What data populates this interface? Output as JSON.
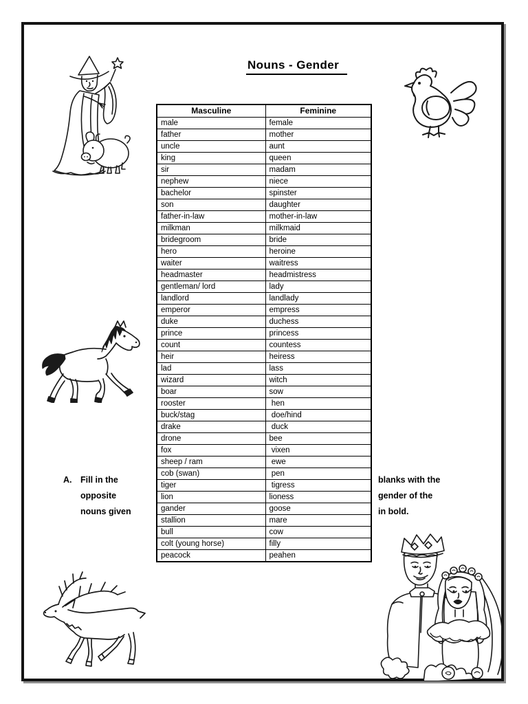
{
  "page": {
    "title": "Nouns - Gender"
  },
  "table": {
    "headers": [
      "Masculine",
      "Feminine"
    ],
    "rows": [
      [
        "male",
        "female"
      ],
      [
        "father",
        "mother"
      ],
      [
        "uncle",
        "aunt"
      ],
      [
        "king",
        "queen"
      ],
      [
        "sir",
        "madam"
      ],
      [
        "nephew",
        "niece"
      ],
      [
        "bachelor",
        "spinster"
      ],
      [
        "son",
        "daughter"
      ],
      [
        "father-in-law",
        "mother-in-law"
      ],
      [
        "milkman",
        "milkmaid"
      ],
      [
        "bridegroom",
        "bride"
      ],
      [
        "hero",
        "heroine"
      ],
      [
        "waiter",
        "waitress"
      ],
      [
        "headmaster",
        "headmistress"
      ],
      [
        "gentleman/ lord",
        "lady"
      ],
      [
        "landlord",
        "landlady"
      ],
      [
        "emperor",
        "empress"
      ],
      [
        "duke",
        "duchess"
      ],
      [
        "prince",
        "princess"
      ],
      [
        "count",
        "countess"
      ],
      [
        "heir",
        "heiress"
      ],
      [
        "lad",
        "lass"
      ],
      [
        "wizard",
        "witch"
      ],
      [
        "boar",
        "sow"
      ],
      [
        "rooster",
        " hen"
      ],
      [
        "buck/stag",
        " doe/hind"
      ],
      [
        "drake",
        " duck"
      ],
      [
        "drone",
        "bee"
      ],
      [
        "fox",
        " vixen"
      ],
      [
        "sheep / ram",
        " ewe"
      ],
      [
        "cob (swan)",
        " pen"
      ],
      [
        "tiger",
        " tigress"
      ],
      [
        "lion",
        "lioness"
      ],
      [
        "gander",
        "goose"
      ],
      [
        "stallion",
        "mare"
      ],
      [
        "bull",
        "cow"
      ],
      [
        "colt (young horse)",
        "filly"
      ],
      [
        "peacock",
        "peahen"
      ]
    ]
  },
  "instructions": {
    "label": "A.",
    "left_lines": [
      "Fill in the",
      "opposite",
      "nouns given"
    ],
    "right_lines": [
      "blanks with the",
      "gender of the",
      "in bold."
    ]
  },
  "illustrations": {
    "top_left": "wizard-with-pig",
    "top_right": "rooster",
    "middle_left": "horse",
    "bottom_left": "stag-deer",
    "bottom_right": "prince-and-bride"
  },
  "colors": {
    "ink": "#1a1a1a",
    "frame": "#141414",
    "frame_shadow": "#8f8f8f"
  }
}
